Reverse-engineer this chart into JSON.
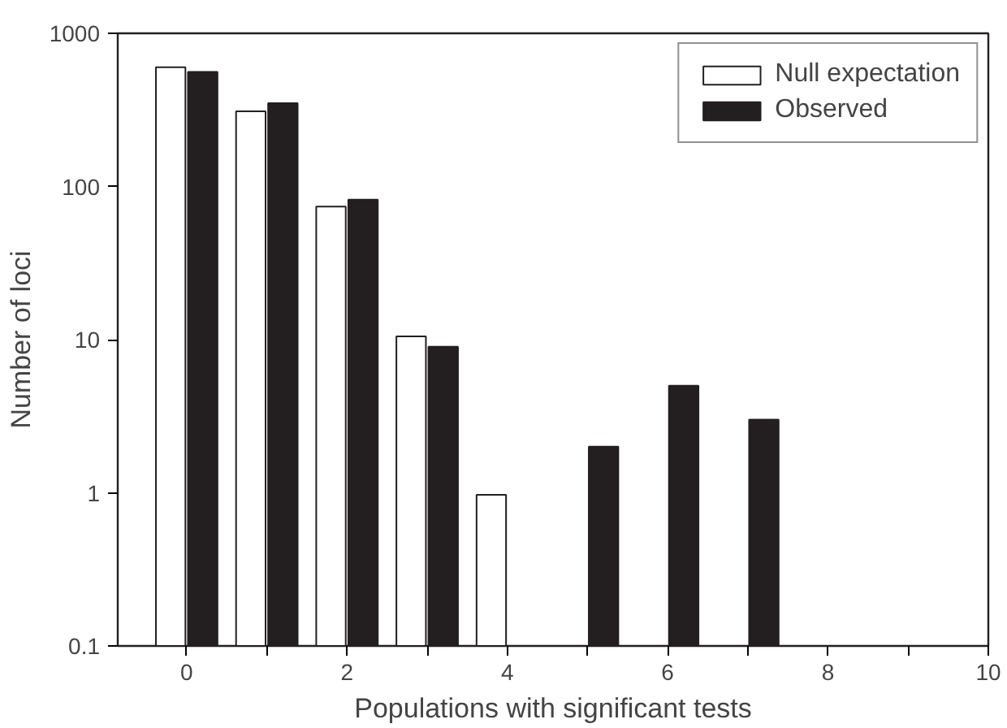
{
  "chart_data": {
    "type": "bar",
    "xlabel": "Populations with significant tests",
    "ylabel": "Number of loci",
    "x": [
      0,
      1,
      2,
      3,
      4,
      5,
      6,
      7
    ],
    "series": [
      {
        "name": "Null expectation",
        "color": "#ffffff",
        "values": [
          600,
          310,
          74,
          10.5,
          0.97,
          null,
          null,
          null
        ]
      },
      {
        "name": "Observed",
        "color": "#231f20",
        "values": [
          560,
          350,
          82,
          9,
          null,
          2,
          5,
          3
        ]
      }
    ],
    "log": true,
    "xlim": [
      -0.86,
      10
    ],
    "ylim": [
      0.1,
      1000
    ],
    "xticks": [
      0,
      {
        "value": 1,
        "label": null
      },
      2,
      {
        "value": 3,
        "label": null
      },
      4,
      {
        "value": 5,
        "label": null
      },
      6,
      {
        "value": 7,
        "label": null
      },
      8,
      {
        "value": 9,
        "label": null
      },
      10
    ],
    "yticks": [
      0.1,
      1,
      10,
      100,
      1000
    ],
    "legend": "top right",
    "grid": false
  }
}
